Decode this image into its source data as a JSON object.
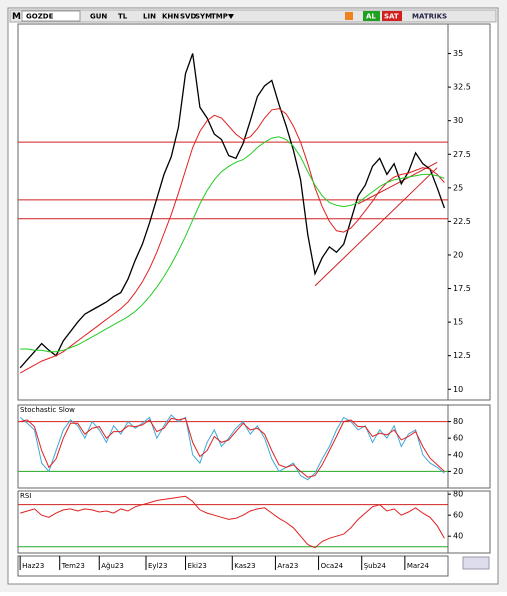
{
  "toolbar": {
    "logo": "M",
    "symbol": "GOZDE",
    "period": "GUN",
    "currency": "TL",
    "scale": "LIN",
    "buttons": [
      "KHN",
      "SVD",
      "SYM",
      "TMP"
    ],
    "buy": "AL",
    "sell": "SAT",
    "brand": "MATRIKS"
  },
  "chart_data": [
    {
      "type": "line",
      "ylim": [
        9.2,
        37.2
      ],
      "yticks": [
        10,
        12.5,
        15,
        17.5,
        20,
        22.5,
        25,
        27.5,
        30,
        32.5,
        35
      ],
      "hlines": [
        28.4,
        24.1,
        22.7
      ],
      "hline_color": "#d02020",
      "trend_lines": [
        {
          "x": [
            41,
            58
          ],
          "y": [
            17.7,
            26.5
          ]
        },
        {
          "x": [
            47,
            58
          ],
          "y": [
            23.8,
            26.9
          ]
        }
      ],
      "trend_color": "#d02020",
      "series": [
        {
          "color": "#000000",
          "values": [
            11.6,
            12.2,
            12.8,
            13.4,
            12.9,
            12.5,
            13.6,
            14.3,
            15.0,
            15.6,
            15.9,
            16.2,
            16.5,
            16.9,
            17.2,
            18.2,
            19.6,
            20.8,
            22.4,
            24.2,
            26.0,
            27.3,
            29.5,
            33.5,
            35.0,
            31.0,
            30.2,
            29.0,
            28.6,
            27.4,
            27.2,
            28.3,
            30.0,
            31.8,
            32.6,
            33.0,
            31.2,
            29.6,
            27.8,
            25.6,
            21.5,
            18.6,
            19.8,
            20.6,
            20.2,
            20.8,
            22.6,
            24.4,
            25.2,
            26.6,
            27.2,
            26.0,
            26.8,
            25.3,
            26.2,
            27.6,
            26.8,
            26.4,
            25.0,
            23.5
          ]
        },
        {
          "color": "#e02020",
          "values": [
            11.2,
            11.5,
            11.8,
            12.1,
            12.3,
            12.5,
            12.8,
            13.2,
            13.6,
            14.0,
            14.4,
            14.8,
            15.2,
            15.6,
            16.0,
            16.5,
            17.2,
            18.0,
            19.0,
            20.2,
            21.6,
            23.0,
            24.6,
            26.3,
            28.0,
            29.2,
            30.0,
            30.4,
            30.2,
            29.6,
            29.0,
            28.6,
            28.8,
            29.4,
            30.2,
            30.8,
            30.9,
            30.5,
            29.6,
            28.4,
            26.8,
            25.0,
            23.6,
            22.5,
            21.8,
            21.7,
            22.0,
            22.6,
            23.3,
            24.0,
            24.8,
            25.4,
            25.8,
            26.0,
            26.1,
            26.3,
            26.5,
            26.4,
            26.0,
            25.4
          ]
        },
        {
          "color": "#22cc22",
          "values": [
            13.0,
            13.0,
            12.9,
            12.9,
            12.8,
            12.8,
            12.9,
            13.1,
            13.3,
            13.6,
            13.9,
            14.2,
            14.5,
            14.8,
            15.1,
            15.4,
            15.8,
            16.3,
            16.9,
            17.6,
            18.4,
            19.3,
            20.3,
            21.4,
            22.6,
            23.8,
            24.8,
            25.6,
            26.2,
            26.6,
            26.9,
            27.1,
            27.5,
            28.0,
            28.4,
            28.7,
            28.8,
            28.6,
            28.1,
            27.3,
            26.2,
            25.2,
            24.4,
            23.9,
            23.7,
            23.6,
            23.7,
            23.9,
            24.3,
            24.7,
            25.1,
            25.4,
            25.6,
            25.7,
            25.8,
            25.9,
            26.0,
            26.0,
            25.9,
            25.7
          ]
        }
      ]
    },
    {
      "type": "line",
      "title": "Stochastic Slow",
      "ylim": [
        0,
        100
      ],
      "yticks": [
        20,
        40,
        60,
        80
      ],
      "hlines": [
        {
          "value": 80,
          "color": "#d02020"
        },
        {
          "value": 20,
          "color": "#22aa22"
        }
      ],
      "series": [
        {
          "color": "#40a8d8",
          "values": [
            85,
            78,
            70,
            30,
            20,
            45,
            70,
            82,
            75,
            60,
            80,
            70,
            55,
            75,
            65,
            80,
            72,
            78,
            85,
            60,
            75,
            88,
            80,
            85,
            40,
            30,
            55,
            70,
            50,
            60,
            72,
            80,
            65,
            75,
            60,
            35,
            20,
            25,
            30,
            15,
            10,
            18,
            35,
            50,
            70,
            85,
            80,
            70,
            75,
            55,
            70,
            60,
            75,
            50,
            65,
            70,
            40,
            30,
            25,
            18
          ]
        },
        {
          "color": "#e02020",
          "values": [
            80,
            82,
            74,
            45,
            25,
            35,
            60,
            78,
            78,
            65,
            72,
            74,
            60,
            68,
            68,
            75,
            74,
            76,
            82,
            68,
            72,
            84,
            82,
            84,
            55,
            38,
            45,
            62,
            55,
            58,
            68,
            78,
            70,
            72,
            65,
            45,
            28,
            25,
            28,
            20,
            13,
            15,
            28,
            45,
            62,
            80,
            82,
            74,
            74,
            62,
            66,
            64,
            70,
            58,
            62,
            68,
            50,
            36,
            28,
            20
          ]
        }
      ]
    },
    {
      "type": "line",
      "title": "RSI",
      "ylim": [
        24,
        83
      ],
      "yticks": [
        40,
        60,
        80
      ],
      "hlines": [
        {
          "value": 70,
          "color": "#d02020"
        },
        {
          "value": 30,
          "color": "#22aa22"
        }
      ],
      "xlim": [
        -0.3,
        59.5
      ],
      "xticks": [
        {
          "value": 0,
          "label": "Haz23"
        },
        {
          "value": 5.5,
          "label": "Tem23"
        },
        {
          "value": 11,
          "label": "Ağu23"
        },
        {
          "value": 17.5,
          "label": "Eyl23"
        },
        {
          "value": 23,
          "label": "Eki23"
        },
        {
          "value": 29.5,
          "label": "Kas23"
        },
        {
          "value": 35.5,
          "label": "Ara23"
        },
        {
          "value": 41.5,
          "label": "Oca24"
        },
        {
          "value": 47.5,
          "label": "Şub24"
        },
        {
          "value": 53.5,
          "label": "Mar24"
        }
      ],
      "series": [
        {
          "color": "#e02020",
          "values": [
            62,
            64,
            66,
            60,
            58,
            62,
            65,
            66,
            64,
            66,
            65,
            63,
            64,
            62,
            66,
            64,
            68,
            70,
            72,
            74,
            75,
            76,
            77,
            78,
            73,
            65,
            62,
            60,
            58,
            56,
            57,
            60,
            64,
            66,
            67,
            62,
            57,
            53,
            48,
            40,
            32,
            29,
            35,
            38,
            40,
            42,
            48,
            56,
            62,
            68,
            70,
            64,
            66,
            60,
            63,
            67,
            62,
            58,
            50,
            38
          ]
        }
      ]
    }
  ]
}
